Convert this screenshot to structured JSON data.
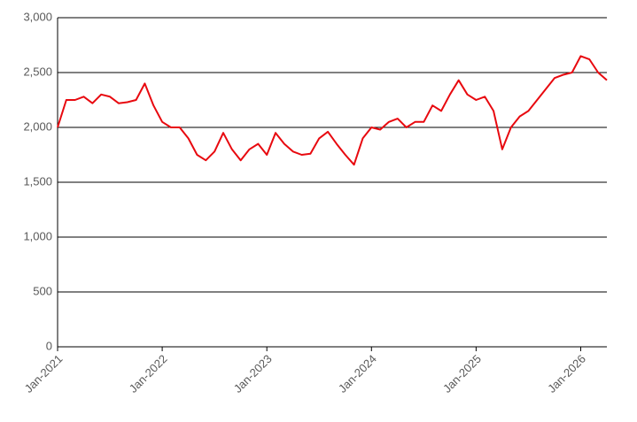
{
  "chart_data": {
    "type": "line",
    "x": [
      "2021-01",
      "2021-02",
      "2021-03",
      "2021-04",
      "2021-05",
      "2021-06",
      "2021-07",
      "2021-08",
      "2021-09",
      "2021-10",
      "2021-11",
      "2021-12",
      "2022-01",
      "2022-02",
      "2022-03",
      "2022-04",
      "2022-05",
      "2022-06",
      "2022-07",
      "2022-08",
      "2022-09",
      "2022-10",
      "2022-11",
      "2022-12",
      "2023-01",
      "2023-02",
      "2023-03",
      "2023-04",
      "2023-05",
      "2023-06",
      "2023-07",
      "2023-08",
      "2023-09",
      "2023-10",
      "2023-11",
      "2023-12",
      "2024-01",
      "2024-02",
      "2024-03",
      "2024-04",
      "2024-05",
      "2024-06",
      "2024-07",
      "2024-08",
      "2024-09",
      "2024-10",
      "2024-11",
      "2024-12",
      "2025-01",
      "2025-02",
      "2025-03",
      "2025-04",
      "2025-05",
      "2025-06",
      "2025-07",
      "2025-08",
      "2025-09",
      "2025-10",
      "2025-11",
      "2025-12",
      "2026-01",
      "2026-02",
      "2026-03",
      "2026-04"
    ],
    "series": [
      {
        "color": "#e8090f",
        "values": [
          2000,
          2250,
          2250,
          2280,
          2220,
          2300,
          2280,
          2220,
          2230,
          2250,
          2400,
          2200,
          2050,
          2000,
          2000,
          1900,
          1750,
          1700,
          1780,
          1950,
          1800,
          1700,
          1800,
          1850,
          1750,
          1950,
          1850,
          1780,
          1750,
          1760,
          1900,
          1960,
          1850,
          1750,
          1660,
          1900,
          2000,
          1980,
          2050,
          2080,
          2000,
          2050,
          2050,
          2200,
          2150,
          2300,
          2430,
          2300,
          2250,
          2280,
          2150,
          1800,
          2000,
          2100,
          2150,
          2250,
          2350,
          2450,
          2480,
          2500,
          2650,
          2620,
          2500,
          2430
        ]
      }
    ],
    "xlim": [
      "2021-01",
      "2026-04"
    ],
    "xticks": [
      {
        "value": "2021-01",
        "label": "Jan-2021"
      },
      {
        "value": "2022-01",
        "label": "Jan-2022"
      },
      {
        "value": "2023-01",
        "label": "Jan-2023"
      },
      {
        "value": "2024-01",
        "label": "Jan-2024"
      },
      {
        "value": "2025-01",
        "label": "Jan-2025"
      },
      {
        "value": "2026-01",
        "label": "Jan-2026"
      }
    ],
    "ylim": [
      0,
      3000
    ],
    "yticks": [
      0,
      500,
      {
        "value": 1000,
        "label": "1,000"
      },
      {
        "value": 1500,
        "label": "1,500"
      },
      {
        "value": 2000,
        "label": "2,000"
      },
      {
        "value": 2500,
        "label": "2,500"
      },
      {
        "value": 3000,
        "label": "3,000"
      }
    ],
    "grid": true
  }
}
